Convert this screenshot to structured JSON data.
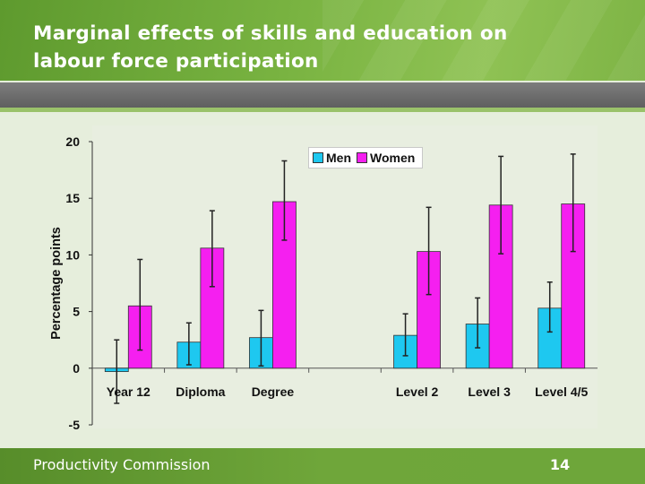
{
  "slide": {
    "title_line1": "Marginal effects of skills and education on",
    "title_line2": "labour force participation",
    "organization": "Productivity Commission",
    "page_number": "14"
  },
  "colors": {
    "men": "#1ec8f0",
    "women": "#f51ff0",
    "error_bar": "#222222"
  },
  "chart_data": {
    "type": "bar",
    "ylabel": "Percentage points",
    "ylim": [
      -5,
      20
    ],
    "yticks": [
      -5,
      0,
      5,
      10,
      15,
      20
    ],
    "grid": false,
    "legend_placement": "top-center",
    "category_slots": [
      "Year 12",
      "Diploma",
      "Degree",
      "",
      "Level 2",
      "Level 3",
      "Level 4/5"
    ],
    "categories": [
      "Year 12",
      "Diploma",
      "Degree",
      "Level 2",
      "Level 3",
      "Level 4/5"
    ],
    "series": [
      {
        "name": "Men",
        "values": [
          -0.3,
          2.3,
          2.7,
          2.9,
          3.9,
          5.3
        ],
        "error_low": [
          -3.1,
          0.3,
          0.2,
          1.1,
          1.8,
          3.2
        ],
        "error_high": [
          2.5,
          4.0,
          5.1,
          4.8,
          6.2,
          7.6
        ]
      },
      {
        "name": "Women",
        "values": [
          5.5,
          10.6,
          14.7,
          10.3,
          14.4,
          14.5
        ],
        "error_low": [
          1.6,
          7.2,
          11.3,
          6.5,
          10.1,
          10.3
        ],
        "error_high": [
          9.6,
          13.9,
          18.3,
          14.2,
          18.7,
          18.9
        ]
      }
    ]
  }
}
